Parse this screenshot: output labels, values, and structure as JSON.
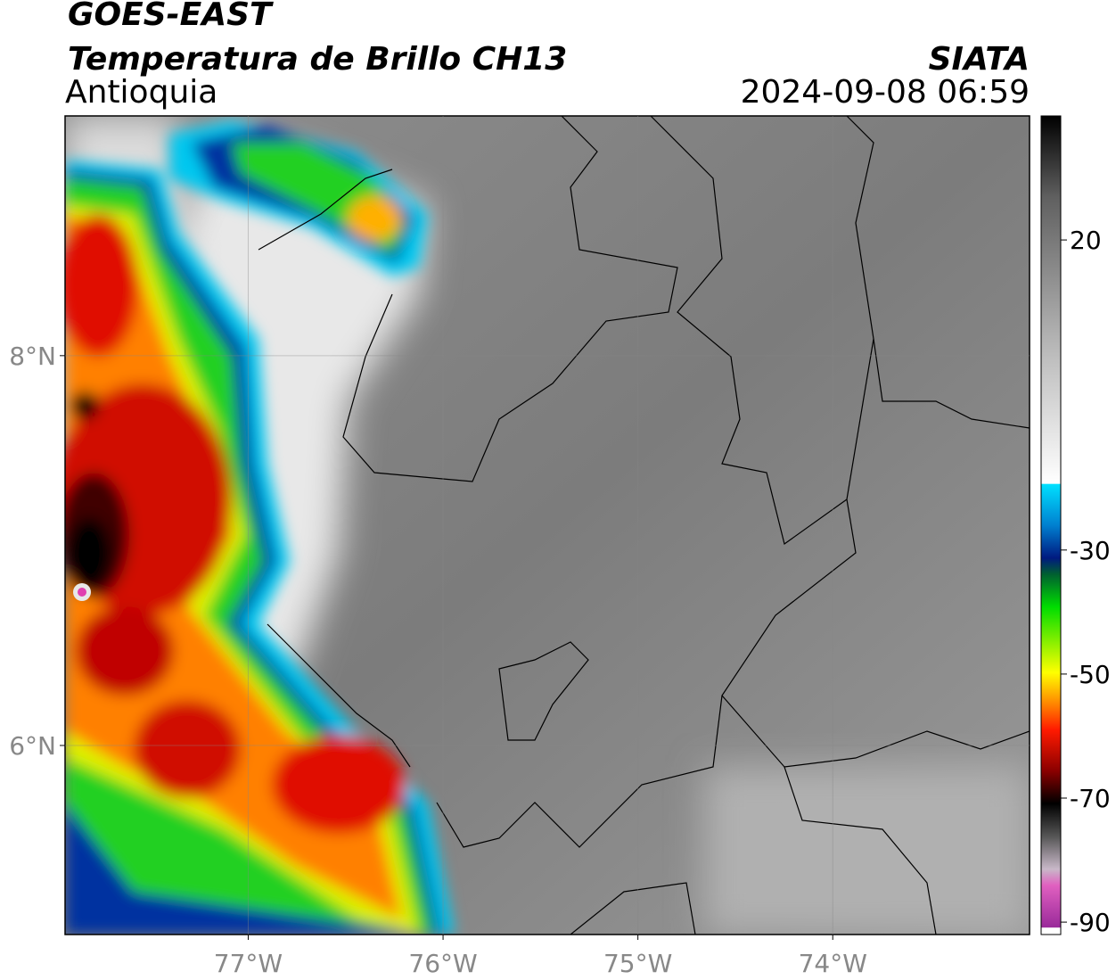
{
  "header": {
    "title": "GOES-EAST",
    "subtitle": "Temperatura de Brillo CH13",
    "region": "Antioquia",
    "source": "SIATA",
    "datetime": "2024-09-08 06:59"
  },
  "map": {
    "xlim": [
      -77.94,
      -72.99
    ],
    "ylim": [
      5.03,
      9.23
    ],
    "xticks": [
      {
        "value": -77,
        "label": "77°W"
      },
      {
        "value": -76,
        "label": "76°W"
      },
      {
        "value": -75,
        "label": "75°W"
      },
      {
        "value": -74,
        "label": "74°W"
      }
    ],
    "yticks": [
      {
        "value": 8,
        "label": "8°N"
      },
      {
        "value": 6,
        "label": "6°N"
      }
    ]
  },
  "colorbar": {
    "lim": [
      -92,
      40
    ],
    "ticks": [
      20,
      -30,
      -50,
      -70,
      -90
    ]
  }
}
